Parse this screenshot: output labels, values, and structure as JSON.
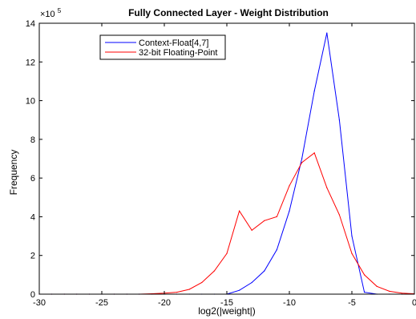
{
  "chart_data": {
    "type": "line",
    "title": "Fully Connected Layer - Weight Distribution",
    "xlabel": "log2(|weight|)",
    "ylabel": "Frequency",
    "xlim": [
      -30,
      0
    ],
    "ylim": [
      0,
      14
    ],
    "y_multiplier_label": "×10",
    "y_multiplier_exponent": "5",
    "x_ticks": [
      -30,
      -25,
      -20,
      -15,
      -10,
      -5,
      0
    ],
    "x_tick_labels": [
      "-30",
      "-25",
      "-20",
      "-15",
      "-10",
      "-5",
      "0"
    ],
    "y_ticks": [
      0,
      2,
      4,
      6,
      8,
      10,
      12,
      14
    ],
    "y_tick_labels": [
      "0",
      "2",
      "4",
      "6",
      "8",
      "10",
      "12",
      "14"
    ],
    "grid": false,
    "legend_position": "top-left",
    "series": [
      {
        "name": "Context-Float[4,7]",
        "color": "#0000ff",
        "x": [
          -30,
          -29,
          -28,
          -27,
          -26,
          -25,
          -24,
          -23,
          -22,
          -21,
          -20,
          -19,
          -18,
          -17,
          -16,
          -15,
          -14,
          -13,
          -12,
          -11,
          -10,
          -9,
          -8,
          -7,
          -6,
          -5,
          -4,
          -3,
          -2,
          -1,
          0
        ],
        "y": [
          0,
          0,
          0,
          0,
          0,
          0,
          0,
          0,
          0,
          0,
          0,
          0,
          0,
          0,
          0,
          0,
          0.2,
          0.6,
          1.2,
          2.3,
          4.3,
          7.0,
          10.5,
          13.5,
          9.0,
          3.0,
          0.1,
          0,
          0,
          0,
          0
        ]
      },
      {
        "name": "32-bit Floating-Point",
        "color": "#ff0000",
        "x": [
          -30,
          -29,
          -28,
          -27,
          -26,
          -25,
          -24,
          -23,
          -22,
          -21,
          -20,
          -19,
          -18,
          -17,
          -16,
          -15,
          -14,
          -13,
          -12,
          -11,
          -10,
          -9,
          -8,
          -7,
          -6,
          -5,
          -4,
          -3,
          -2,
          -1,
          0
        ],
        "y": [
          0,
          0,
          0,
          0,
          0,
          0,
          0,
          0,
          0,
          0.02,
          0.05,
          0.1,
          0.25,
          0.6,
          1.2,
          2.1,
          4.3,
          3.3,
          3.8,
          4.0,
          5.6,
          6.8,
          7.3,
          5.5,
          4.1,
          2.1,
          1.0,
          0.4,
          0.15,
          0.05,
          0.02
        ]
      }
    ]
  }
}
